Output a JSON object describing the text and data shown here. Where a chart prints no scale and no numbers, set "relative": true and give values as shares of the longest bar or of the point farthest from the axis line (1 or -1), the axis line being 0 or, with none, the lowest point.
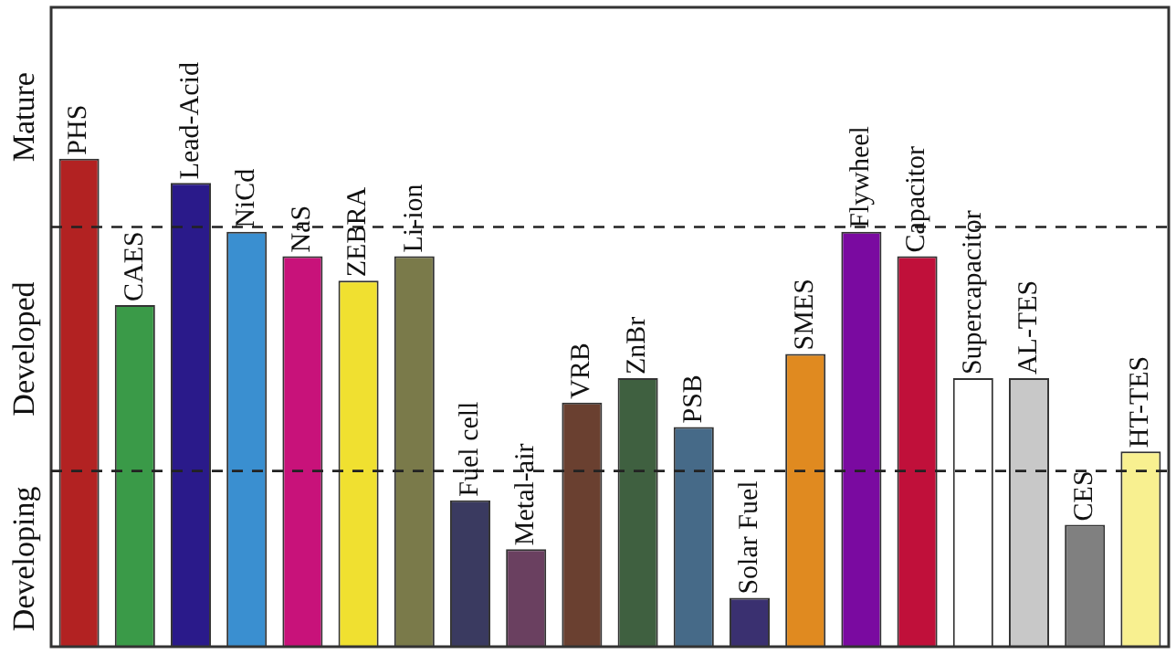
{
  "chart_data": {
    "type": "bar",
    "relative": true,
    "categories": [
      "PHS",
      "CAES",
      "Lead-Acid",
      "NiCd",
      "NaS",
      "ZEBRA",
      "Li-ion",
      "Fuel cell",
      "Metal-air",
      "VRB",
      "ZnBr",
      "PSB",
      "Solar Fuel",
      "SMES",
      "Flywheel",
      "Capacitor",
      "Supercapacitor",
      "AL-TES",
      "CES",
      "HT-TES"
    ],
    "values": [
      1,
      0.7,
      0.95,
      0.85,
      0.8,
      0.75,
      0.8,
      0.3,
      0.2,
      0.5,
      0.55,
      0.45,
      0.1,
      0.6,
      0.85,
      0.8,
      0.55,
      0.55,
      0.25,
      0.4
    ],
    "colors": [
      "#b22222",
      "#3a9a48",
      "#2a1a8a",
      "#3a8fd0",
      "#c8127a",
      "#f0e030",
      "#7a7a4a",
      "#3a3a60",
      "#6a4060",
      "#6a4030",
      "#3f6040",
      "#466a88",
      "#3a3070",
      "#e08a20",
      "#7a0aa0",
      "#c0103a",
      "#ffffff",
      "#c8c8c8",
      "#808080",
      "#f8f090"
    ],
    "ref_lines": [
      {
        "axis": "y",
        "value": 0.36,
        "line_style": "dashed",
        "color": "#222222"
      },
      {
        "axis": "y",
        "value": 0.86,
        "line_style": "dashed",
        "color": "#222222"
      }
    ],
    "annotations": [
      "Developing",
      "Developed",
      "Mature"
    ],
    "grid": false,
    "legend": false
  }
}
